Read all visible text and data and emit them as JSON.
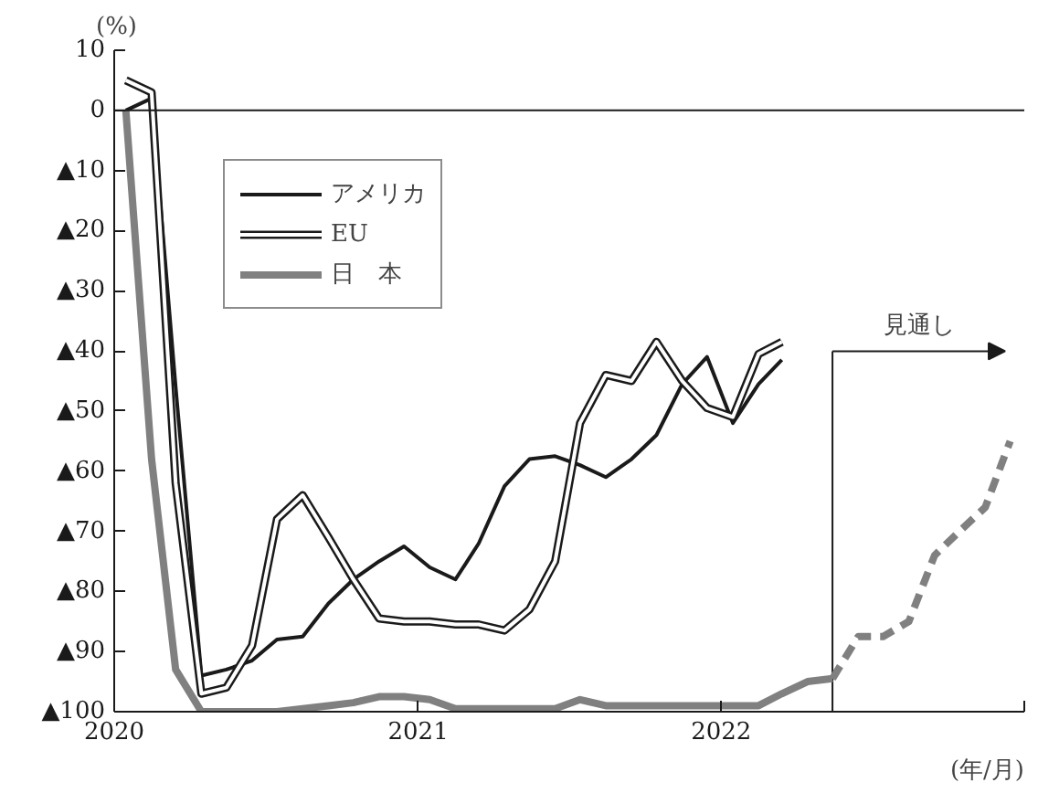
{
  "chart_data": {
    "type": "line",
    "ylabel": "(%)",
    "xlabel": "(年/月)",
    "x": [
      "2020-01-15",
      "2020-02-15",
      "2020-03-15",
      "2020-04-15",
      "2020-05-15",
      "2020-06-15",
      "2020-07-15",
      "2020-08-15",
      "2020-09-15",
      "2020-10-15",
      "2020-11-15",
      "2020-12-15",
      "2021-01-15",
      "2021-02-15",
      "2021-03-15",
      "2021-04-15",
      "2021-05-15",
      "2021-06-15",
      "2021-07-15",
      "2021-08-15",
      "2021-09-15",
      "2021-10-15",
      "2021-11-15",
      "2021-12-15",
      "2022-01-15",
      "2022-02-15",
      "2022-03-15",
      "2022-04-15",
      "2022-05-15",
      "2022-06-15",
      "2022-07-15",
      "2022-08-15",
      "2022-09-15",
      "2022-10-15",
      "2022-11-15",
      "2022-12-15"
    ],
    "series": [
      {
        "name": "アメリカ",
        "color": "#1a1a1a",
        "values": [
          0,
          2,
          -46,
          -94,
          -93,
          -91.5,
          -88,
          -87.5,
          -82,
          -78,
          -75,
          -72.5,
          -76,
          -78,
          -72,
          -62.5,
          -58,
          -57.5,
          -59,
          -61,
          -58,
          -54,
          -45.5,
          -41,
          -52,
          -45.5,
          -41.5,
          null,
          null,
          null,
          null,
          null,
          null,
          null,
          null,
          null
        ]
      },
      {
        "name": "EU",
        "color": "#1a1a1a",
        "values": [
          5,
          3,
          -62,
          -97,
          -96,
          -89,
          -68,
          -64,
          -71,
          -78,
          -84.5,
          -85,
          -85,
          -85.5,
          -85.5,
          -86.5,
          -83,
          -75,
          -52,
          -44,
          -45,
          -38.5,
          -45,
          -49.5,
          -51,
          -40.5,
          -38.5,
          null,
          null,
          null,
          null,
          null,
          null,
          null,
          null,
          null
        ]
      },
      {
        "name": "日　本",
        "color": "#808080",
        "values": [
          0,
          -58,
          -93,
          -100,
          -100,
          -100,
          -100,
          -99.5,
          -99,
          -98.5,
          -97.5,
          -97.5,
          -98,
          -99.5,
          -99.5,
          -99.5,
          -99.5,
          -99.5,
          -98,
          -99,
          -99,
          -99,
          -99,
          -99,
          -99,
          -99,
          -97,
          -95,
          -94.5,
          null,
          null,
          null,
          null,
          null,
          null,
          null
        ]
      },
      {
        "color": "#808080",
        "line_style": "dashed",
        "values": [
          null,
          null,
          null,
          null,
          null,
          null,
          null,
          null,
          null,
          null,
          null,
          null,
          null,
          null,
          null,
          null,
          null,
          null,
          null,
          null,
          null,
          null,
          null,
          null,
          null,
          null,
          null,
          null,
          -94.5,
          -87.5,
          -87.5,
          -85,
          -74,
          -70,
          -66,
          -55
        ]
      }
    ],
    "xlim": [
      "2020-01-01",
      "2023-01-01"
    ],
    "xticks": [
      {
        "value": "2020-01-01",
        "label": "2020"
      },
      {
        "value": "2021-01-01",
        "label": "2021"
      },
      {
        "value": "2022-01-01",
        "label": "2022"
      },
      {
        "value": "2023-01-01",
        "label": null
      }
    ],
    "ylim": [
      -100,
      10
    ],
    "yticks": [
      10,
      0,
      {
        "value": -10,
        "label": "▲10"
      },
      {
        "value": -20,
        "label": "▲20"
      },
      {
        "value": -30,
        "label": "▲30"
      },
      {
        "value": -40,
        "label": "▲40"
      },
      {
        "value": -50,
        "label": "▲50"
      },
      {
        "value": -60,
        "label": "▲60"
      },
      {
        "value": -70,
        "label": "▲70"
      },
      {
        "value": -80,
        "label": "▲80"
      },
      {
        "value": -90,
        "label": "▲90"
      },
      {
        "value": -100,
        "label": "▲100"
      }
    ],
    "ref_lines": [
      {
        "axis": "y",
        "value": 0,
        "color": "#1a1a1a"
      },
      {
        "axis": "x",
        "value": "2022-05-15",
        "label": "見通し",
        "color": "#1a1a1a"
      }
    ],
    "legend": "top left",
    "grid": false,
    "marker": "none",
    "line_style": "solid"
  }
}
